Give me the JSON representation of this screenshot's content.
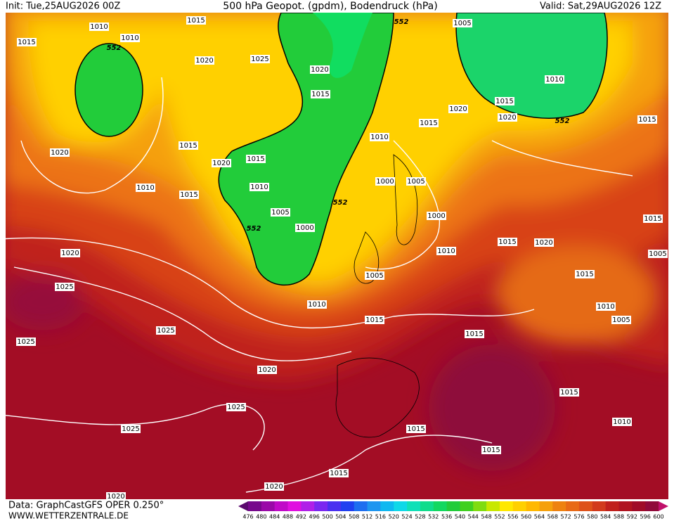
{
  "header": {
    "init": "Init: Tue,25AUG2026 00Z",
    "title": "500 hPa Geopot. (gpdm), Bodendruck (hPa)",
    "valid": "Valid: Sat,29AUG2026 12Z"
  },
  "isobar_labels": [
    "1010",
    "1015",
    "1010",
    "1015",
    "552",
    "1020",
    "1025",
    "1020",
    "1015",
    "552",
    "1005",
    "1010",
    "1015",
    "1020",
    "1020",
    "552",
    "1015",
    "1015",
    "1015",
    "1020",
    "1020",
    "1015",
    "1010",
    "1010",
    "1015",
    "1010",
    "1000",
    "1005",
    "552",
    "1005",
    "1000",
    "552",
    "1000",
    "1015",
    "1015",
    "1020",
    "1010",
    "1020",
    "1005",
    "1005",
    "1015",
    "1025",
    "1010",
    "1010",
    "1015",
    "1005",
    "1025",
    "1015",
    "1025",
    "1020",
    "1015",
    "1025",
    "1010",
    "1025",
    "1015",
    "1015",
    "1015",
    "1020",
    "1020"
  ],
  "footer": {
    "source": "Data: GraphCastGFS OPER 0.250°",
    "site": "WWW.WETTERZENTRALE.DE"
  },
  "colorbar": {
    "labels": [
      "476",
      "480",
      "484",
      "488",
      "492",
      "496",
      "500",
      "504",
      "508",
      "512",
      "516",
      "520",
      "524",
      "528",
      "532",
      "536",
      "540",
      "544",
      "548",
      "552",
      "556",
      "560",
      "564",
      "568",
      "572",
      "576",
      "580",
      "584",
      "588",
      "592",
      "596",
      "600"
    ]
  }
}
